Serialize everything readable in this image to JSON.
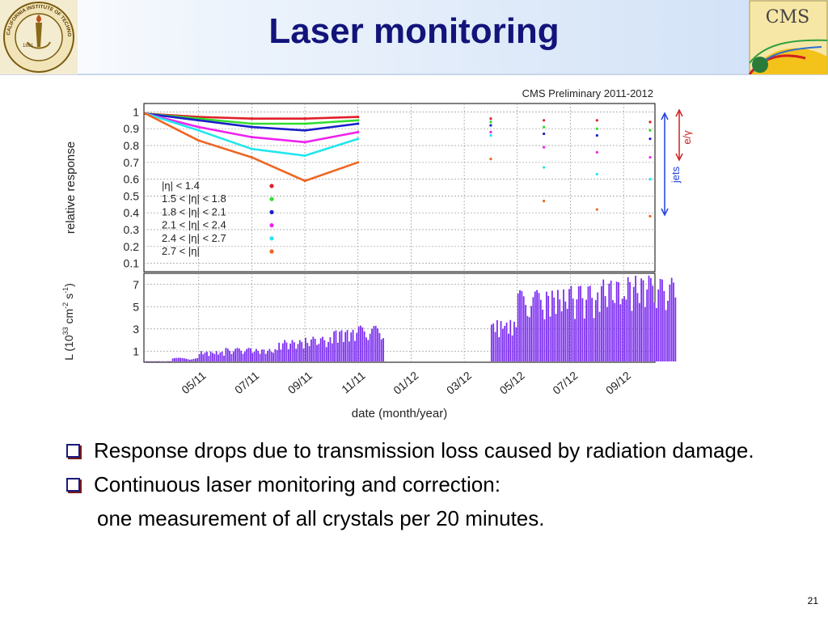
{
  "slide": {
    "title": "Laser monitoring",
    "number": "21",
    "left_logo_text": "CALIFORNIA INSTITUTE OF TECHNOLOGY",
    "left_logo_year": "1891",
    "right_logo_text": "CMS"
  },
  "bullets": [
    {
      "text": "Response drops due to transmission loss caused by radiation damage."
    },
    {
      "text": "Continuous laser monitoring and correction:",
      "continuation": "one measurement of all crystals per 20 minutes."
    }
  ],
  "colors": {
    "title": "#12147a",
    "eta14": "#e0202a",
    "eta18": "#30dd30",
    "eta21": "#1a20c8",
    "eta24": "#ee22ee",
    "eta27": "#22e6ee",
    "eta30": "#ee6622",
    "lumi": "#7a2af0",
    "arrows": "#2040e0"
  },
  "chart_data": [
    {
      "type": "line",
      "header": "CMS Preliminary 2011-2012",
      "ylabel": "relative response",
      "ylim": [
        0.05,
        1.05
      ],
      "yticks": [
        "1",
        "0.9",
        "0.8",
        "0.7",
        "0.6",
        "0.5",
        "0.4",
        "0.3",
        "0.2",
        "0.1"
      ],
      "x_dates": [
        "03/11",
        "04/11",
        "05/11",
        "06/11",
        "07/11",
        "08/11",
        "09/11",
        "10/11",
        "11/11",
        "12/11",
        "01/12",
        "02/12",
        "03/12",
        "04/12",
        "05/12",
        "06/12",
        "07/12",
        "08/12",
        "09/12",
        "10/12"
      ],
      "x_ticks": [
        "05/11",
        "07/11",
        "09/11",
        "11/11",
        "01/12",
        "03/12",
        "05/12",
        "07/12",
        "09/12"
      ],
      "xlabel": "date (month/year)",
      "legend_placement": "bottom-left",
      "arrow_labels": [
        "e/γ",
        "jets"
      ],
      "series": [
        {
          "name": "|η| < 1.4",
          "color": "#e0202a",
          "x": [
            "03/11",
            "05/11",
            "07/11",
            "09/11",
            "11/11",
            "04/12",
            "06/12",
            "08/12",
            "10/12"
          ],
          "y": [
            0.99,
            0.97,
            0.96,
            0.96,
            0.97,
            0.96,
            0.95,
            0.95,
            0.94
          ]
        },
        {
          "name": "1.5 < |η| < 1.8",
          "color": "#30dd30",
          "x": [
            "03/11",
            "05/11",
            "07/11",
            "09/11",
            "11/11",
            "04/12",
            "06/12",
            "08/12",
            "10/12"
          ],
          "y": [
            0.99,
            0.96,
            0.93,
            0.93,
            0.95,
            0.94,
            0.91,
            0.9,
            0.89
          ]
        },
        {
          "name": "1.8 < |η| < 2.1",
          "color": "#1a20c8",
          "x": [
            "03/11",
            "05/11",
            "07/11",
            "09/11",
            "11/11",
            "04/12",
            "06/12",
            "08/12",
            "10/12"
          ],
          "y": [
            0.99,
            0.95,
            0.91,
            0.89,
            0.93,
            0.92,
            0.87,
            0.86,
            0.84
          ]
        },
        {
          "name": "2.1 < |η| < 2.4",
          "color": "#ee22ee",
          "x": [
            "03/11",
            "05/11",
            "07/11",
            "09/11",
            "11/11",
            "04/12",
            "06/12",
            "08/12",
            "10/12"
          ],
          "y": [
            0.99,
            0.91,
            0.85,
            0.82,
            0.88,
            0.88,
            0.79,
            0.76,
            0.73
          ]
        },
        {
          "name": "2.4 < |η| < 2.7",
          "color": "#22e6ee",
          "x": [
            "03/11",
            "05/11",
            "07/11",
            "09/11",
            "11/11",
            "04/12",
            "06/12",
            "08/12",
            "10/12"
          ],
          "y": [
            0.99,
            0.89,
            0.78,
            0.74,
            0.84,
            0.86,
            0.67,
            0.63,
            0.6
          ]
        },
        {
          "name": "2.7 < |η|",
          "color": "#ee6622",
          "x": [
            "03/11",
            "05/11",
            "07/11",
            "09/11",
            "11/11",
            "04/12",
            "06/12",
            "08/12",
            "10/12"
          ],
          "y": [
            0.99,
            0.83,
            0.73,
            0.59,
            0.7,
            0.72,
            0.47,
            0.42,
            0.38
          ]
        }
      ]
    },
    {
      "type": "bar",
      "ylabel": "L (10^33 cm^-2 s^-1)",
      "ylim": [
        0,
        8
      ],
      "yticks": [
        "7",
        "5",
        "3",
        "1"
      ],
      "x_ticks": [
        "05/11",
        "07/11",
        "09/11",
        "11/11",
        "01/12",
        "03/12",
        "05/12",
        "07/12",
        "09/12"
      ],
      "xlabel": "date (month/year)",
      "series": [
        {
          "color": "#7a2af0",
          "x": [
            "03/11",
            "04/11",
            "05/11",
            "06/11",
            "07/11",
            "08/11",
            "09/11",
            "10/11",
            "11/11",
            "12/11",
            "01/12",
            "02/12",
            "03/12",
            "04/12",
            "05/12",
            "06/12",
            "07/12",
            "08/12",
            "09/12",
            "10/12"
          ],
          "values": [
            0.1,
            0.4,
            1.0,
            1.3,
            1.2,
            2.0,
            2.3,
            3.0,
            3.3,
            0,
            0,
            0,
            0,
            3.8,
            6.5,
            6.6,
            7.0,
            7.5,
            7.8,
            7.6
          ]
        }
      ]
    }
  ]
}
